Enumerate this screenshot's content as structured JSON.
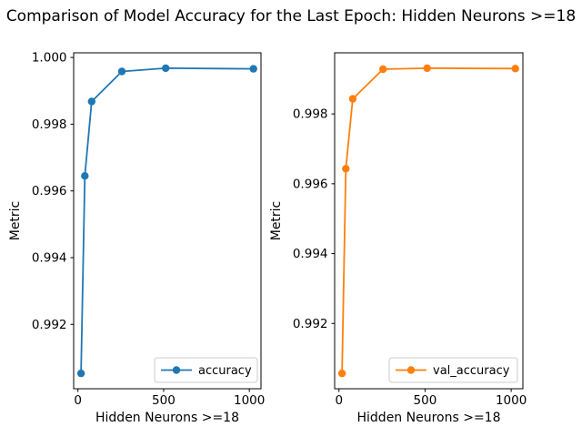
{
  "figure": {
    "title": "Comparison of Model Accuracy for the Last Epoch: Hidden Neurons >=18",
    "background": "#ffffff",
    "text_color": "#000000"
  },
  "chart_data": [
    {
      "type": "line",
      "xlabel": "Hidden Neurons >=18",
      "ylabel": "Metric",
      "x": [
        18,
        40,
        80,
        256,
        512,
        1024
      ],
      "series": [
        {
          "name": "accuracy",
          "color": "#1f77b4",
          "marker": "o",
          "values": [
            0.99053,
            0.99645,
            0.99868,
            0.99958,
            0.99968,
            0.99966
          ]
        }
      ],
      "xlim": [
        -25,
        1068
      ],
      "ylim": [
        0.99007,
        1.00014
      ],
      "xticks": [
        0,
        500,
        1000
      ],
      "xtick_labels": [
        "0",
        "500",
        "1000"
      ],
      "yticks": [
        0.992,
        0.994,
        0.996,
        0.998,
        1.0
      ],
      "ytick_labels": [
        "0.992",
        "0.994",
        "0.996",
        "0.998",
        "1.000"
      ],
      "grid": false,
      "legend": {
        "labels": [
          "accuracy"
        ],
        "loc": "lower right"
      }
    },
    {
      "type": "line",
      "xlabel": "Hidden Neurons >=18",
      "ylabel": "Metric",
      "x": [
        18,
        40,
        80,
        256,
        512,
        1024
      ],
      "series": [
        {
          "name": "val_accuracy",
          "color": "#ff7f0e",
          "marker": "o",
          "values": [
            0.99057,
            0.99643,
            0.99843,
            0.99928,
            0.99931,
            0.9993
          ]
        }
      ],
      "xlim": [
        -25,
        1068
      ],
      "ylim": [
        0.99013,
        0.99975
      ],
      "xticks": [
        0,
        500,
        1000
      ],
      "xtick_labels": [
        "0",
        "500",
        "1000"
      ],
      "yticks": [
        0.992,
        0.994,
        0.996,
        0.998
      ],
      "ytick_labels": [
        "0.992",
        "0.994",
        "0.996",
        "0.998"
      ],
      "grid": false,
      "legend": {
        "labels": [
          "val_accuracy"
        ],
        "loc": "lower right"
      }
    }
  ]
}
